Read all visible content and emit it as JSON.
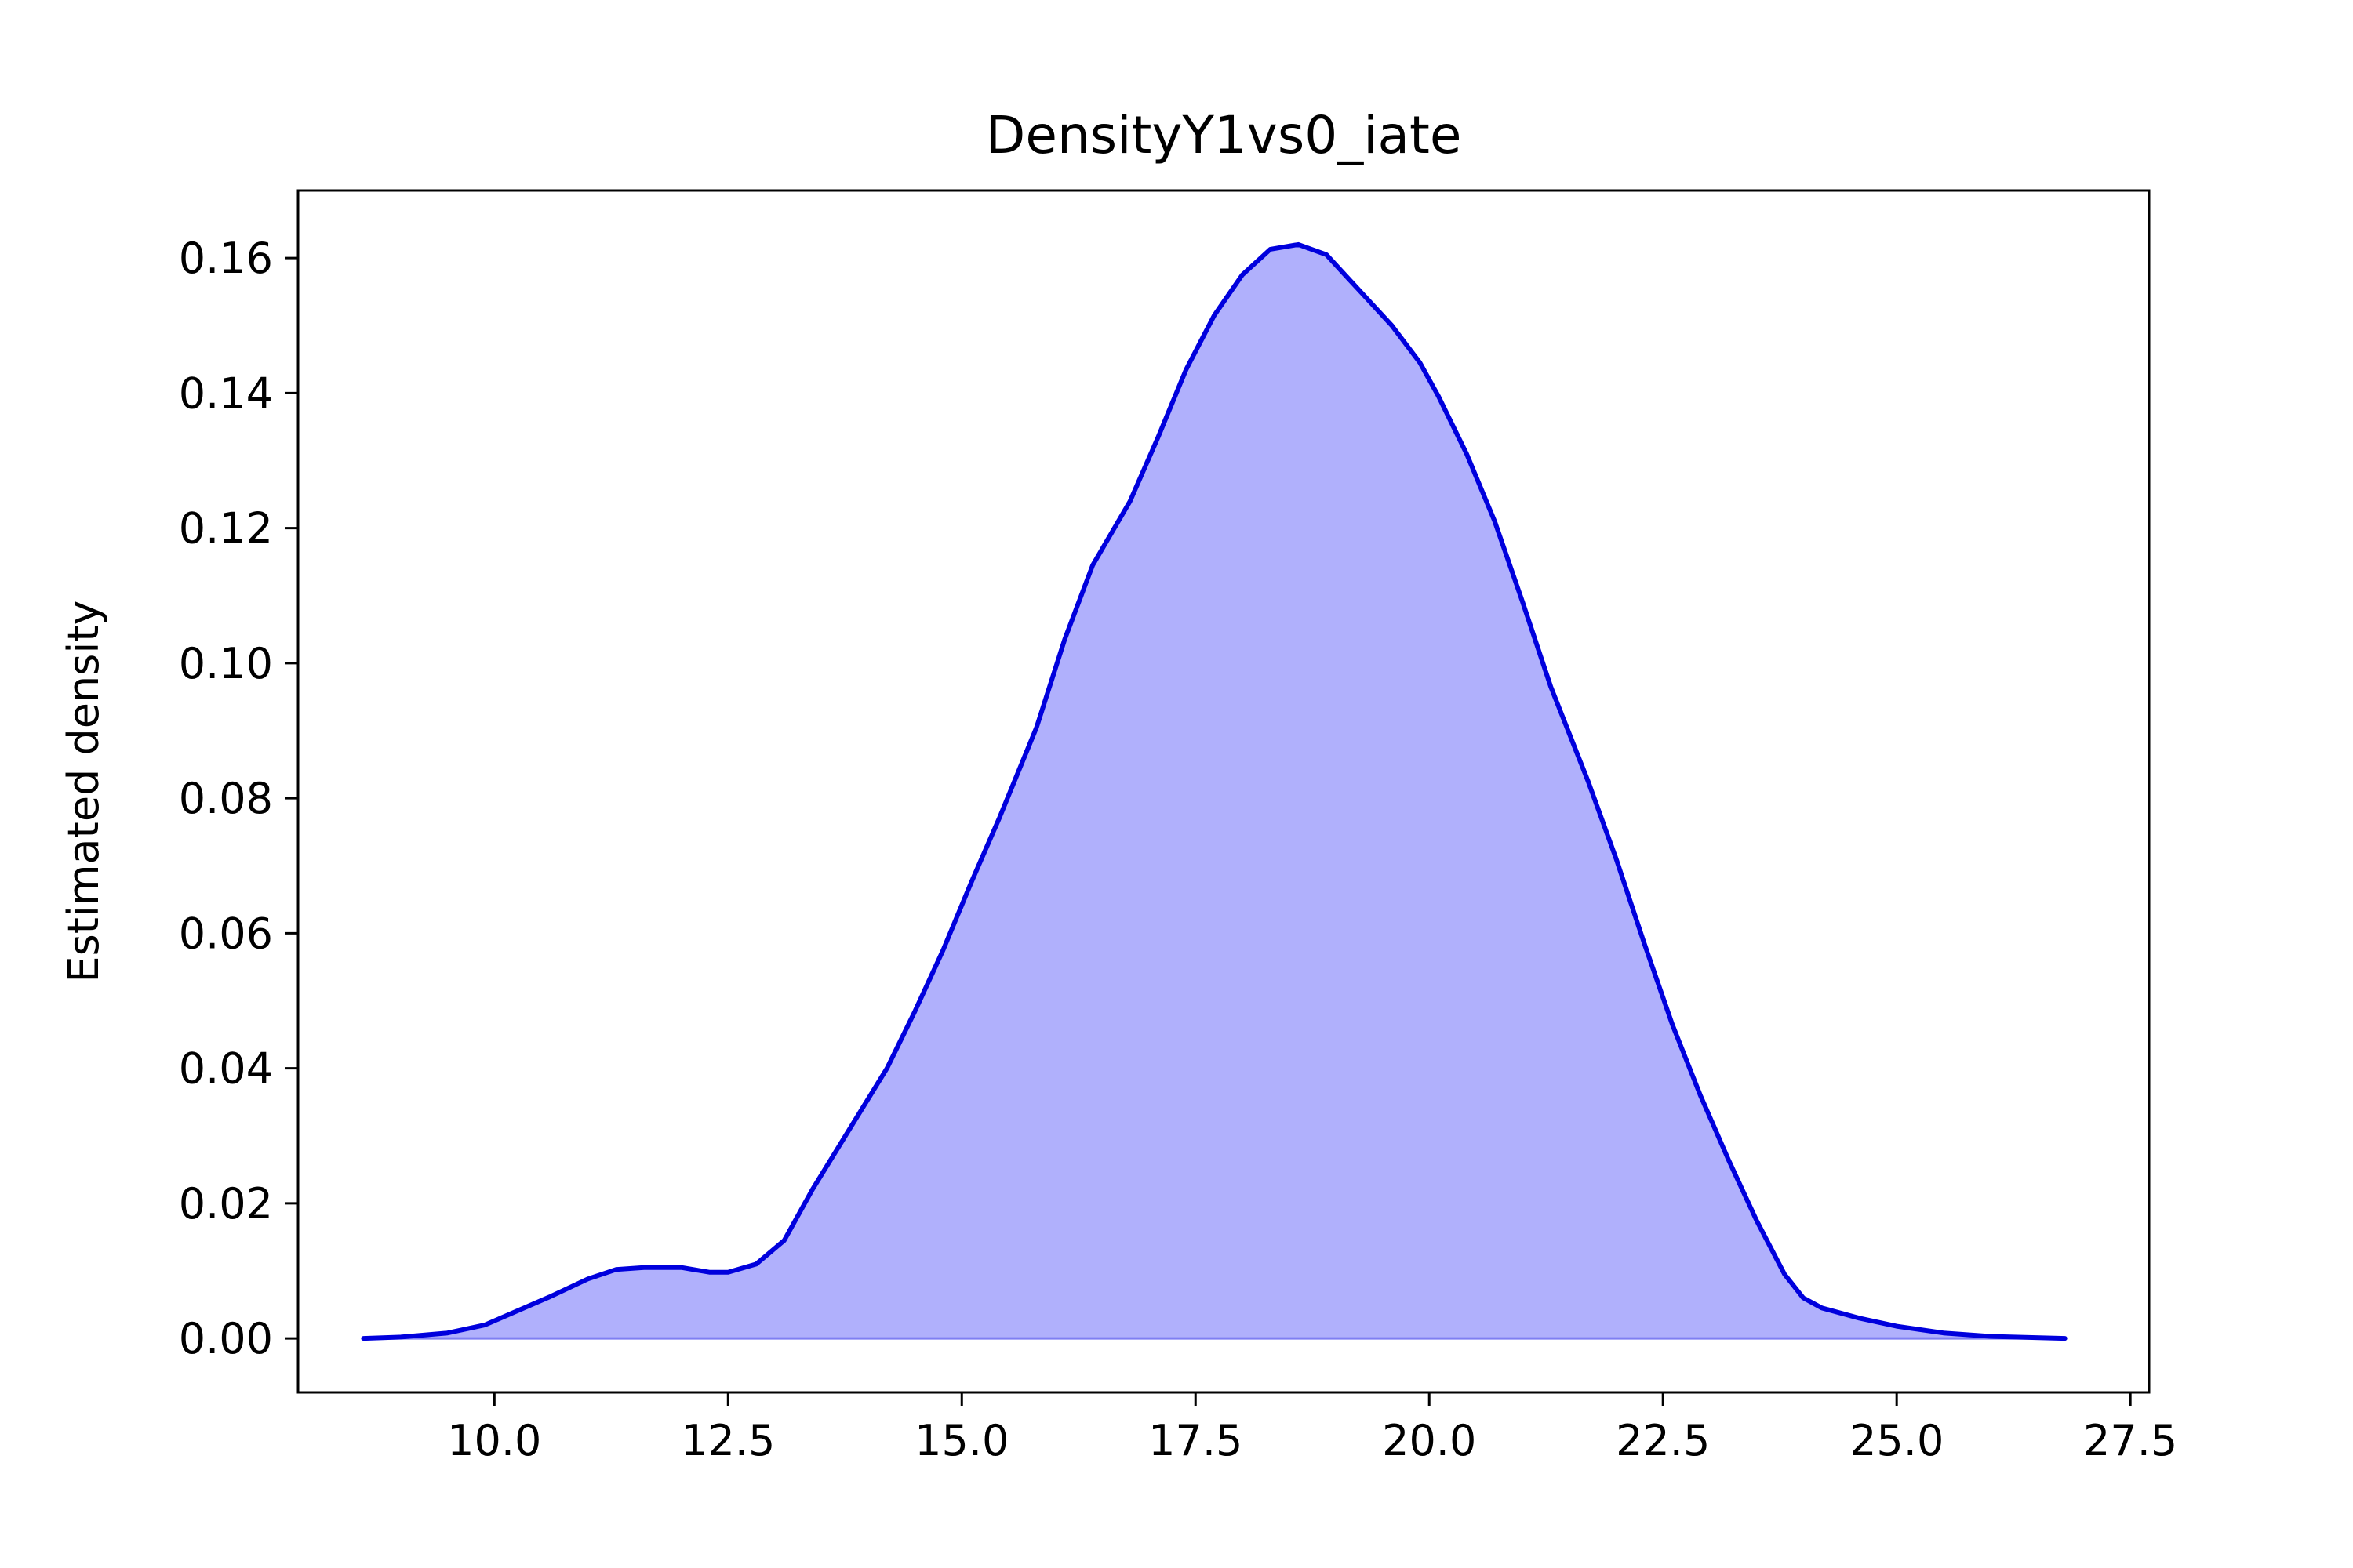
{
  "chart_data": {
    "type": "area",
    "title": "DensityY1vs0_iate",
    "xlabel": "",
    "ylabel": "Estimated density",
    "xlim": [
      7.9,
      27.7
    ],
    "ylim": [
      -0.008,
      0.17
    ],
    "xticks": [
      10.0,
      12.5,
      15.0,
      17.5,
      20.0,
      22.5,
      25.0,
      27.5
    ],
    "xtick_labels": [
      "10.0",
      "12.5",
      "15.0",
      "17.5",
      "20.0",
      "22.5",
      "25.0",
      "27.5"
    ],
    "yticks": [
      0.0,
      0.02,
      0.04,
      0.06,
      0.08,
      0.1,
      0.12,
      0.14,
      0.16
    ],
    "ytick_labels": [
      "0.00",
      "0.02",
      "0.04",
      "0.06",
      "0.08",
      "0.10",
      "0.12",
      "0.14",
      "0.16"
    ],
    "grid": false,
    "legend": "none",
    "line_color": "#0000dd",
    "fill_color": "#b0b0fc",
    "series": [
      {
        "x": [
          8.6,
          9.0,
          9.5,
          9.9,
          10.2,
          10.6,
          11.0,
          11.3,
          11.6,
          12.0,
          12.3,
          12.5,
          12.8,
          13.1,
          13.4,
          13.8,
          14.2,
          14.5,
          14.8,
          15.1,
          15.4,
          15.8,
          16.1,
          16.4,
          16.8,
          17.1,
          17.4,
          17.7,
          18.0,
          18.3,
          18.6,
          18.9,
          19.1,
          19.3,
          19.6,
          19.9,
          20.1,
          20.4,
          20.7,
          21.0,
          21.3,
          21.7,
          22.0,
          22.3,
          22.6,
          22.9,
          23.2,
          23.5,
          23.8,
          24.0,
          24.2,
          24.6,
          25.0,
          25.5,
          26.0,
          26.8
        ],
        "y": [
          0.0,
          0.0002,
          0.0008,
          0.002,
          0.0038,
          0.0062,
          0.0088,
          0.0102,
          0.0105,
          0.0105,
          0.0098,
          0.0098,
          0.011,
          0.0145,
          0.022,
          0.031,
          0.04,
          0.0485,
          0.0575,
          0.0675,
          0.077,
          0.0905,
          0.1035,
          0.1145,
          0.124,
          0.1335,
          0.1435,
          0.1515,
          0.1575,
          0.1613,
          0.162,
          0.1605,
          0.1575,
          0.1545,
          0.15,
          0.1445,
          0.1395,
          0.131,
          0.121,
          0.109,
          0.0965,
          0.0825,
          0.071,
          0.0585,
          0.0465,
          0.036,
          0.0265,
          0.0175,
          0.0095,
          0.006,
          0.0045,
          0.003,
          0.0018,
          0.0008,
          0.0003,
          0.0
        ]
      }
    ]
  }
}
